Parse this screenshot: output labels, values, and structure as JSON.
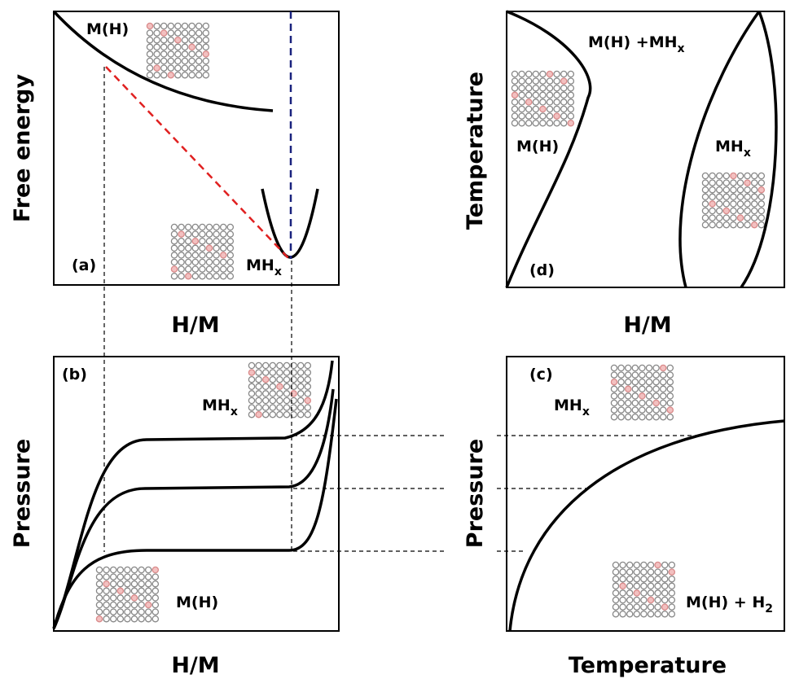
{
  "panels": {
    "a": {
      "tag": "(a)",
      "y_label": "Free energy",
      "x_label": "H/M",
      "phase_low": "M(H)",
      "phase_high": {
        "base": "MH",
        "sub": "x"
      }
    },
    "b": {
      "tag": "(b)",
      "y_label": "Pressure",
      "x_label": "H/M",
      "phase_high": {
        "base": "MH",
        "sub": "x"
      },
      "phase_low": "M(H)"
    },
    "c": {
      "tag": "(c)",
      "y_label": "Pressure",
      "x_label": "Temperature",
      "phase_high": {
        "base": "MH",
        "sub": "x"
      },
      "phase_low": {
        "base": "M(H) + H",
        "sub": "2"
      }
    },
    "d": {
      "tag": "(d)",
      "y_label": "Temperature",
      "x_label": "H/M",
      "phase_mixed": {
        "base": "M(H) +MH",
        "sub": "x"
      },
      "phase_low": "M(H)",
      "phase_high": {
        "base": "MH",
        "sub": "x"
      }
    }
  }
}
